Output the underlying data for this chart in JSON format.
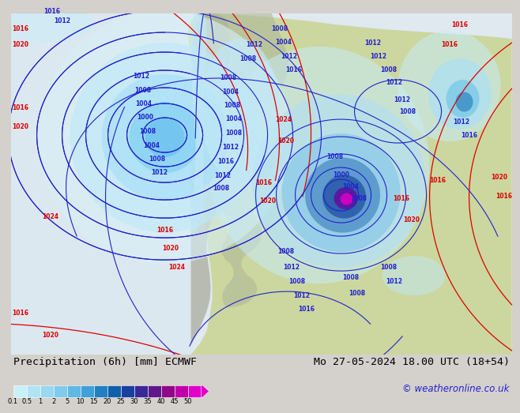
{
  "title_left": "Precipitation (6h) [mm] ECMWF",
  "title_right": "Mo 27-05-2024 18.00 UTC (18+54)",
  "copyright": "© weatheronline.co.uk",
  "colorbar_levels": [
    "0.1",
    "0.5",
    "1",
    "2",
    "5",
    "10",
    "15",
    "20",
    "25",
    "30",
    "35",
    "40",
    "45",
    "50"
  ],
  "colorbar_colors": [
    "#c8f0f8",
    "#b0e4f4",
    "#98d8f0",
    "#7fcbec",
    "#60b8e4",
    "#40a0d8",
    "#2080c0",
    "#1060a8",
    "#1840a0",
    "#382898",
    "#601888",
    "#900888",
    "#c000a8",
    "#e000c8"
  ],
  "bg_ocean": "#e8eef4",
  "bg_gray": "#d4d0cc",
  "land_green": "#c8d890",
  "land_gray": "#b8b8a8",
  "precip_v_light": "#d0f0f8",
  "precip_light": "#b0e4f4",
  "precip_mid_light": "#88cce8",
  "precip_mid": "#60acd8",
  "precip_heavy": "#3880c0",
  "precip_vheavy_blue": "#1050a8",
  "precip_purple": "#8000a0",
  "precip_magenta": "#d000c0",
  "red_isobar": "#dd0000",
  "blue_isobar": "#2222cc",
  "bottom_bg": "#e8e8e8",
  "title_fontsize": 9.5,
  "label_fontsize": 5.5,
  "copyright_fontsize": 8.5
}
